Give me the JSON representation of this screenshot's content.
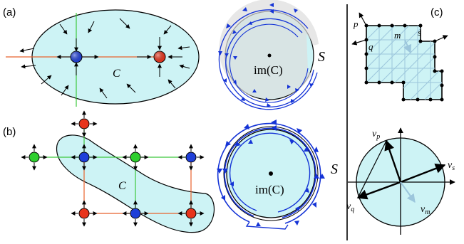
{
  "panels": {
    "a": {
      "label": "(a)",
      "region": "C"
    },
    "b": {
      "label": "(b)",
      "region": "C"
    },
    "c": {
      "label": "(c)"
    }
  },
  "flow_top": {
    "image_label": "im(C)",
    "curve_label": "S"
  },
  "flow_bottom": {
    "image_label": "im(C)",
    "curve_label": "S"
  },
  "grid_labels": {
    "p": "p",
    "q": "q",
    "m": "m",
    "s": "s"
  },
  "vector_labels": {
    "vp": "v",
    "vp_sub": "p",
    "vq": "v",
    "vq_sub": "q",
    "vs": "v",
    "vs_sub": "s",
    "vm": "v",
    "vm_sub": "m"
  },
  "colors": {
    "region_fill": "#cdf3f5",
    "blue_node": "#1f3fd8",
    "red_node": "#e8341c",
    "green_node": "#2ecf2e",
    "flow_blue": "#1433d6",
    "orange_line": "#e8622c",
    "green_line": "#3cc83c",
    "grid_line": "#9cc6dc"
  }
}
